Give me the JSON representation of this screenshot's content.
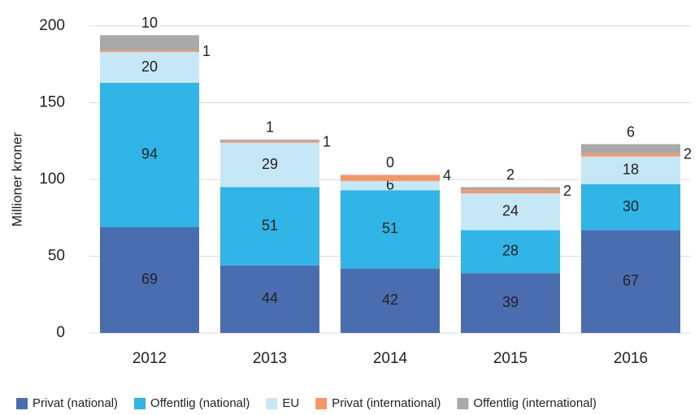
{
  "chart_data": {
    "type": "stacked_bar",
    "y_label": "Millioner kroner",
    "categories": [
      "2012",
      "2013",
      "2014",
      "2015",
      "2016"
    ],
    "series": [
      {
        "name": "Privat (national)",
        "color": "#4a6db0",
        "values": [
          69,
          44,
          42,
          39,
          67
        ]
      },
      {
        "name": "Offentlig (national)",
        "color": "#31b5e6",
        "values": [
          94,
          51,
          51,
          28,
          30
        ]
      },
      {
        "name": "EU",
        "color": "#c6e7f6",
        "values": [
          20,
          29,
          6,
          24,
          18
        ]
      },
      {
        "name": "Privat (international)",
        "color": "#f7956a",
        "values": [
          1,
          1,
          4,
          2,
          2
        ]
      },
      {
        "name": "Offentlig (international)",
        "color": "#a9a9a9",
        "values": [
          10,
          1,
          0,
          2,
          6
        ]
      }
    ],
    "ylim": [
      0,
      200
    ],
    "yticks": [
      0,
      50,
      100,
      150,
      200
    ],
    "grid": true,
    "legend": "bottom"
  }
}
